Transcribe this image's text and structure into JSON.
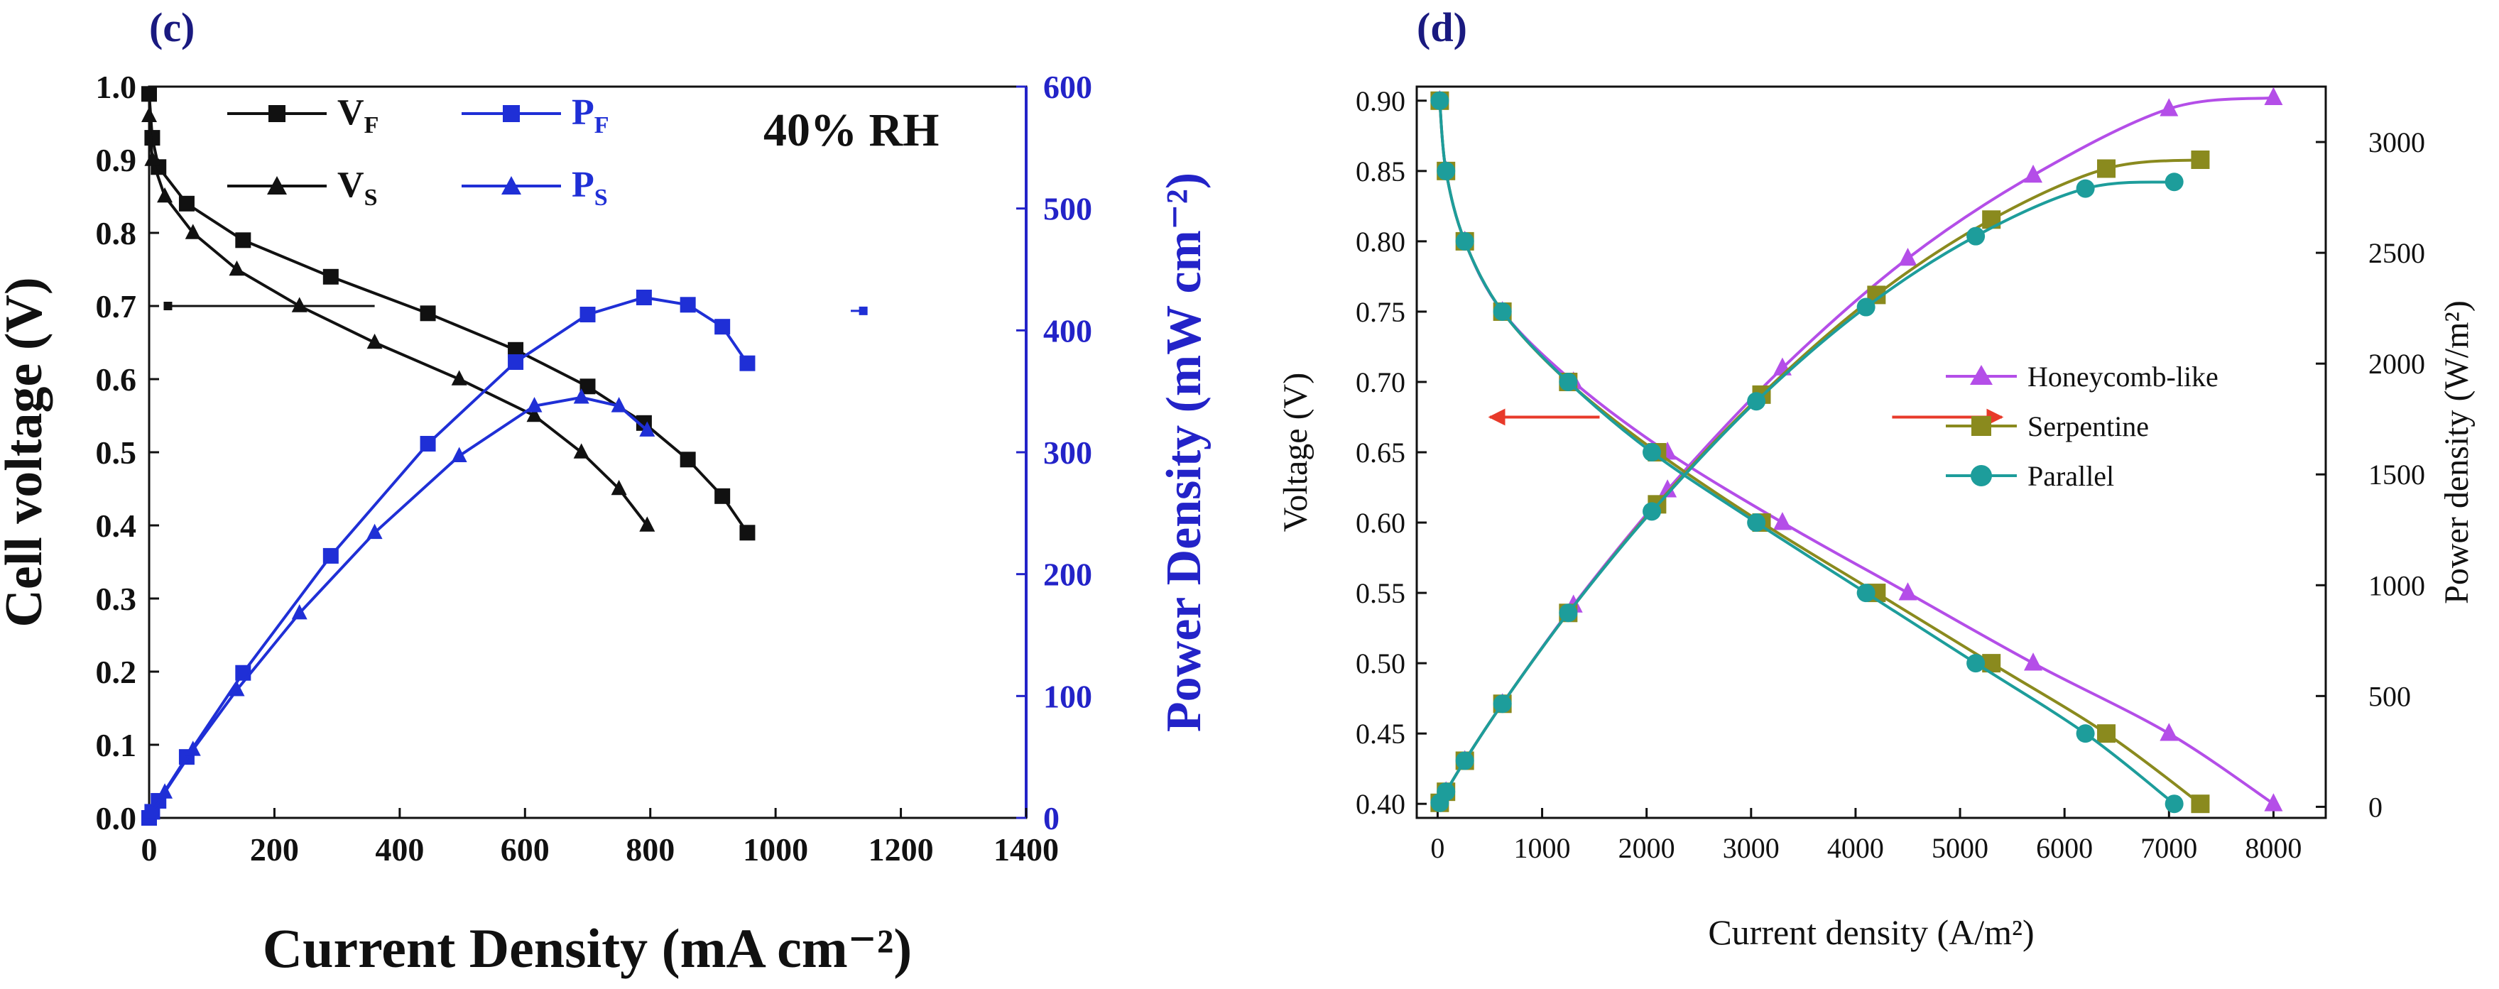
{
  "chart_data": [
    {
      "panel_label": "(c)",
      "type": "line",
      "annotation": "40% RH",
      "xlabel": "Current Density (mA cm⁻²)",
      "ylabel_left": "Cell voltage (V)",
      "ylabel_right": "Power Density (mW cm⁻²)",
      "xlim": [
        0,
        1400
      ],
      "ylim_left": [
        0,
        1.0
      ],
      "ylim_right": [
        0,
        600
      ],
      "x_ticks": [
        "0",
        "200",
        "400",
        "600",
        "800",
        "1000",
        "1200",
        "1400"
      ],
      "y_left_ticks": [
        "0.0",
        "0.1",
        "0.2",
        "0.3",
        "0.4",
        "0.5",
        "0.6",
        "0.7",
        "0.8",
        "0.9",
        "1.0"
      ],
      "y_right_ticks": [
        "0",
        "100",
        "200",
        "300",
        "400",
        "500",
        "600"
      ],
      "legend": [
        {
          "base": "V",
          "sub": "F"
        },
        {
          "base": "P",
          "sub": "F"
        },
        {
          "base": "V",
          "sub": "S"
        },
        {
          "base": "P",
          "sub": "S"
        }
      ],
      "colors": {
        "voltage": "#111111",
        "power": "#1f2fd6",
        "power_axis": "#2323c8"
      },
      "series": [
        {
          "name": "VF",
          "axis": "left",
          "marker": "square",
          "color": "#111111",
          "x": [
            0,
            5,
            15,
            60,
            150,
            290,
            445,
            585,
            700,
            790,
            860,
            915,
            955
          ],
          "y": [
            0.99,
            0.93,
            0.89,
            0.84,
            0.79,
            0.74,
            0.69,
            0.64,
            0.59,
            0.54,
            0.49,
            0.44,
            0.39
          ]
        },
        {
          "name": "VS",
          "axis": "left",
          "marker": "triangle",
          "color": "#111111",
          "x": [
            0,
            5,
            25,
            70,
            140,
            240,
            360,
            495,
            615,
            690,
            750,
            795
          ],
          "y": [
            0.96,
            0.9,
            0.85,
            0.8,
            0.75,
            0.7,
            0.65,
            0.6,
            0.55,
            0.5,
            0.45,
            0.4
          ]
        },
        {
          "name": "PF",
          "axis": "right",
          "marker": "square",
          "color": "#1f2fd6",
          "x": [
            0,
            5,
            15,
            60,
            150,
            290,
            445,
            585,
            700,
            790,
            860,
            915,
            955
          ],
          "y": [
            0,
            5,
            14,
            50,
            119,
            215,
            307,
            374,
            413,
            427,
            421,
            403,
            373
          ]
        },
        {
          "name": "PS",
          "axis": "right",
          "marker": "triangle",
          "color": "#1f2fd6",
          "x": [
            0,
            5,
            25,
            70,
            140,
            240,
            360,
            495,
            615,
            690,
            750,
            795
          ],
          "y": [
            0,
            5,
            21,
            56,
            105,
            168,
            234,
            297,
            338,
            345,
            338,
            318
          ]
        }
      ],
      "guide_arrows": [
        {
          "axis": "left",
          "y": 0.7,
          "x_from": 360,
          "x_to": 30
        },
        {
          "axis": "right",
          "y": 416,
          "x_from": 1120,
          "x_to": 1140
        }
      ]
    },
    {
      "panel_label": "(d)",
      "type": "line",
      "xlabel": "Current density (A/m²)",
      "ylabel_left": "Voltage (V)",
      "ylabel_right": "Power density (W/m²)",
      "xlim": [
        -200,
        8500
      ],
      "ylim_left": [
        0.39,
        0.91
      ],
      "ylim_right": [
        -50,
        3250
      ],
      "x_ticks": [
        "0",
        "1000",
        "2000",
        "3000",
        "4000",
        "5000",
        "6000",
        "7000",
        "8000"
      ],
      "y_left_ticks": [
        "0.40",
        "0.45",
        "0.50",
        "0.55",
        "0.60",
        "0.65",
        "0.70",
        "0.75",
        "0.80",
        "0.85",
        "0.90"
      ],
      "y_right_ticks": [
        "0",
        "500",
        "1000",
        "1500",
        "2000",
        "2500",
        "3000"
      ],
      "legend": [
        "Honeycomb-like",
        "Serpentine",
        "Parallel"
      ],
      "colors": {
        "honeycomb": "#b44ee8",
        "serpentine": "#8a8a1e",
        "parallel": "#1d9d9b",
        "arrow": "#e83a2a"
      },
      "series": [
        {
          "name": "Honeycomb-like",
          "marker": "triangle",
          "color": "#b44ee8",
          "x": [
            20,
            80,
            260,
            620,
            1300,
            2200,
            3300,
            4500,
            5700,
            7000,
            8000
          ],
          "voltage": [
            0.9,
            0.85,
            0.8,
            0.75,
            0.7,
            0.65,
            0.6,
            0.55,
            0.5,
            0.45,
            0.4
          ],
          "power": [
            18,
            68,
            208,
            465,
            910,
            1430,
            1980,
            2475,
            2850,
            3150,
            3200
          ]
        },
        {
          "name": "Serpentine",
          "marker": "square",
          "color": "#8a8a1e",
          "x": [
            20,
            80,
            260,
            620,
            1250,
            2100,
            3100,
            4200,
            5300,
            6400,
            7300
          ],
          "voltage": [
            0.9,
            0.85,
            0.8,
            0.75,
            0.7,
            0.65,
            0.6,
            0.55,
            0.5,
            0.45,
            0.4
          ],
          "power": [
            18,
            68,
            208,
            465,
            875,
            1365,
            1860,
            2310,
            2650,
            2880,
            2920
          ]
        },
        {
          "name": "Parallel",
          "marker": "circle",
          "color": "#1d9d9b",
          "x": [
            20,
            80,
            260,
            620,
            1250,
            2050,
            3050,
            4100,
            5150,
            6200,
            7050
          ],
          "voltage": [
            0.9,
            0.85,
            0.8,
            0.75,
            0.7,
            0.65,
            0.6,
            0.55,
            0.5,
            0.45,
            0.4
          ],
          "power": [
            18,
            68,
            208,
            465,
            875,
            1333,
            1830,
            2255,
            2575,
            2790,
            2820
          ]
        }
      ],
      "guide_arrows": [
        {
          "axis": "left",
          "y": 0.675,
          "x_from": 1550,
          "x_to": 500
        },
        {
          "axis": "left",
          "y": 0.675,
          "x_from": 4350,
          "x_to": 5400
        }
      ]
    }
  ]
}
